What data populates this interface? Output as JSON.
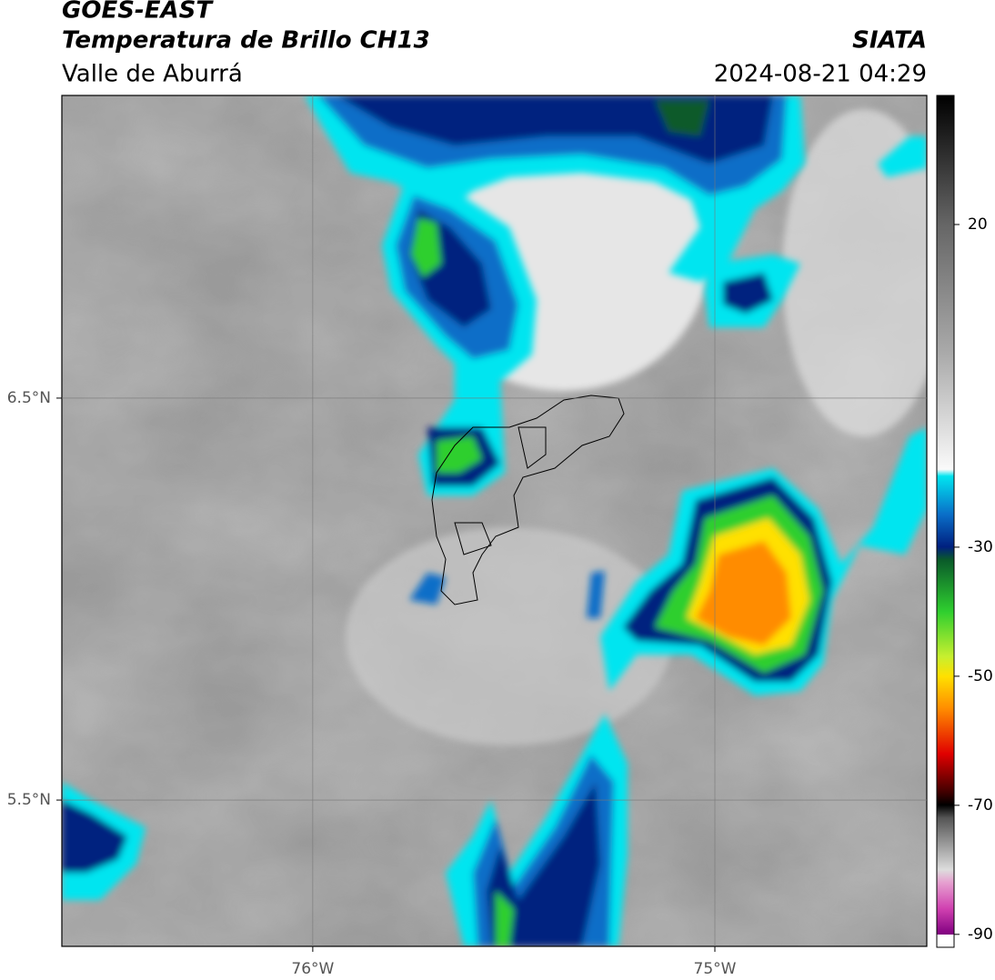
{
  "header": {
    "title": "GOES-EAST",
    "subtitle": "Temperatura de Brillo CH13",
    "region": "Valle de Aburrá",
    "source": "SIATA",
    "datetime": "2024-08-21 04:29"
  },
  "map": {
    "xlim": [
      -76.624,
      -74.473
    ],
    "ylim": [
      5.136,
      7.253
    ],
    "xticks": [
      {
        "value": -76,
        "label": "76°W"
      },
      {
        "value": -75,
        "label": "75°W"
      }
    ],
    "yticks": [
      {
        "value": 6.5,
        "label": "6.5°N"
      },
      {
        "value": 5.5,
        "label": "5.5°N"
      }
    ],
    "grid": true
  },
  "colorbar": {
    "lim": [
      -92,
      40
    ],
    "ticks": [
      20,
      -30,
      -50,
      -70,
      -90
    ]
  }
}
